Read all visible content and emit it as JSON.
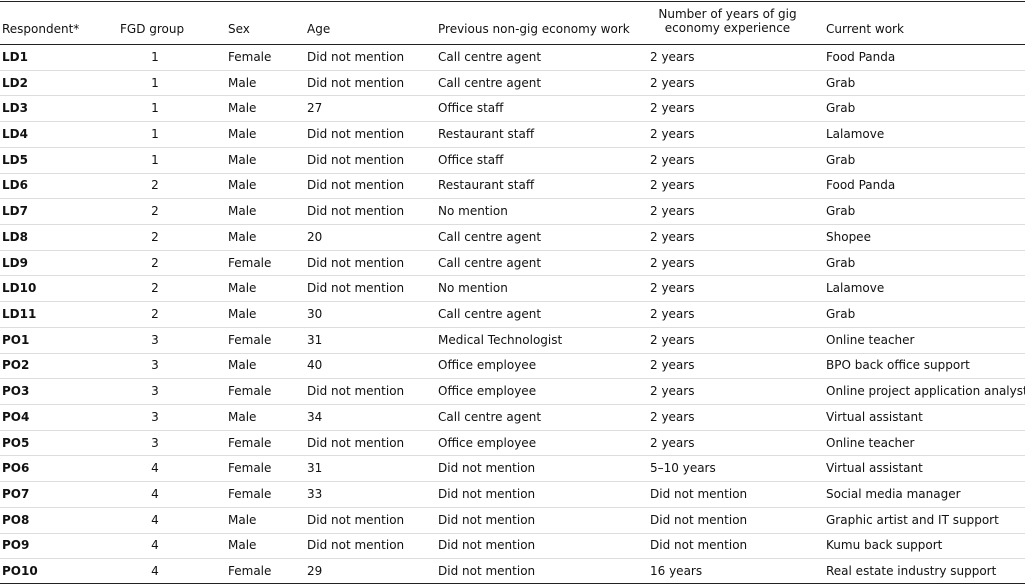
{
  "table": {
    "columns": [
      "Respondent*",
      "FGD group",
      "Sex",
      "Age",
      "Previous non-gig economy work",
      "Number of years of gig economy experience",
      "Current work"
    ],
    "rows": [
      [
        "LD1",
        "1",
        "Female",
        "Did not mention",
        "Call centre agent",
        "2 years",
        "Food Panda"
      ],
      [
        "LD2",
        "1",
        "Male",
        "Did not mention",
        "Call centre agent",
        "2 years",
        "Grab"
      ],
      [
        "LD3",
        "1",
        "Male",
        "27",
        "Office staff",
        "2 years",
        "Grab"
      ],
      [
        "LD4",
        "1",
        "Male",
        "Did not mention",
        "Restaurant staff",
        "2 years",
        "Lalamove"
      ],
      [
        "LD5",
        "1",
        "Male",
        "Did not mention",
        "Office staff",
        "2 years",
        "Grab"
      ],
      [
        "LD6",
        "2",
        "Male",
        "Did not mention",
        "Restaurant staff",
        "2 years",
        "Food Panda"
      ],
      [
        "LD7",
        "2",
        "Male",
        "Did not mention",
        "No mention",
        "2 years",
        "Grab"
      ],
      [
        "LD8",
        "2",
        "Male",
        "20",
        "Call centre agent",
        "2 years",
        "Shopee"
      ],
      [
        "LD9",
        "2",
        "Female",
        "Did not mention",
        "Call centre agent",
        "2 years",
        "Grab"
      ],
      [
        "LD10",
        "2",
        "Male",
        "Did not mention",
        "No mention",
        "2 years",
        "Lalamove"
      ],
      [
        "LD11",
        "2",
        "Male",
        "30",
        "Call centre agent",
        "2 years",
        "Grab"
      ],
      [
        "PO1",
        "3",
        "Female",
        "31",
        "Medical Technologist",
        "2 years",
        "Online teacher"
      ],
      [
        "PO2",
        "3",
        "Male",
        "40",
        "Office employee",
        "2 years",
        "BPO back office support"
      ],
      [
        "PO3",
        "3",
        "Female",
        "Did not mention",
        "Office employee",
        "2 years",
        "Online project application analyst"
      ],
      [
        "PO4",
        "3",
        "Male",
        "34",
        "Call centre agent",
        "2 years",
        "Virtual assistant"
      ],
      [
        "PO5",
        "3",
        "Female",
        "Did not mention",
        "Office employee",
        "2 years",
        "Online teacher"
      ],
      [
        "PO6",
        "4",
        "Female",
        "31",
        "Did not mention",
        "5–10 years",
        "Virtual assistant"
      ],
      [
        "PO7",
        "4",
        "Female",
        "33",
        "Did not mention",
        "Did not mention",
        "Social media manager"
      ],
      [
        "PO8",
        "4",
        "Male",
        "Did not mention",
        "Did not mention",
        "Did not mention",
        "Graphic artist and IT support"
      ],
      [
        "PO9",
        "4",
        "Male",
        "Did not mention",
        "Did not mention",
        "Did not mention",
        "Kumu back support"
      ],
      [
        "PO10",
        "4",
        "Female",
        "29",
        "Did not mention",
        "16 years",
        "Real estate industry support"
      ]
    ]
  }
}
